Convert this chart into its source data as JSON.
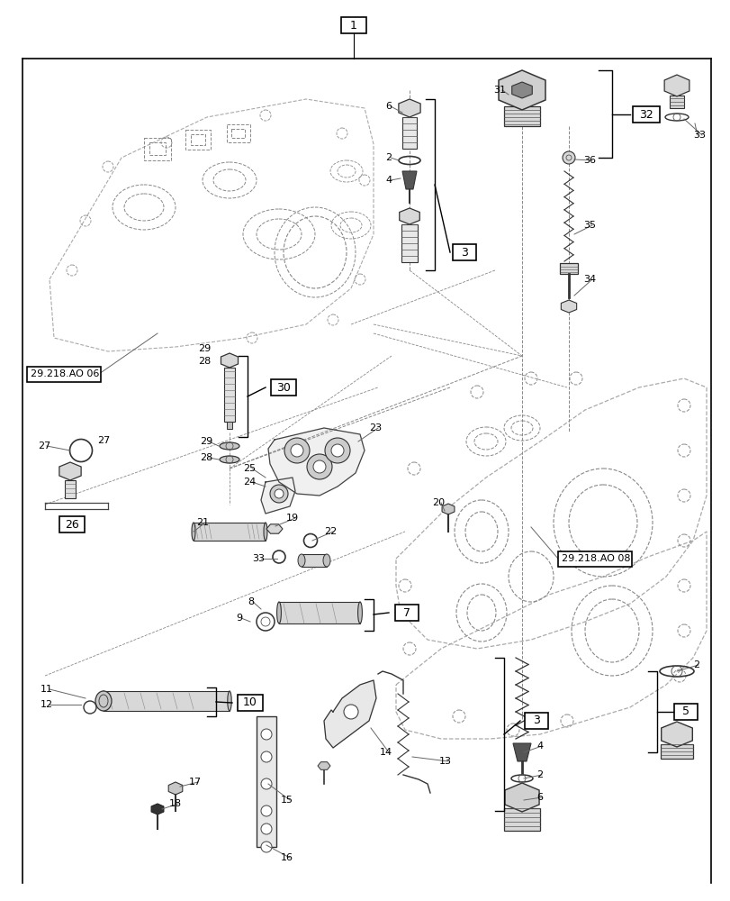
{
  "bg": "#ffffff",
  "lc": "#000000",
  "lc_gray": "#666666",
  "lc_dash": "#888888",
  "fig_w": 8.12,
  "fig_h": 10.0,
  "dpi": 100
}
